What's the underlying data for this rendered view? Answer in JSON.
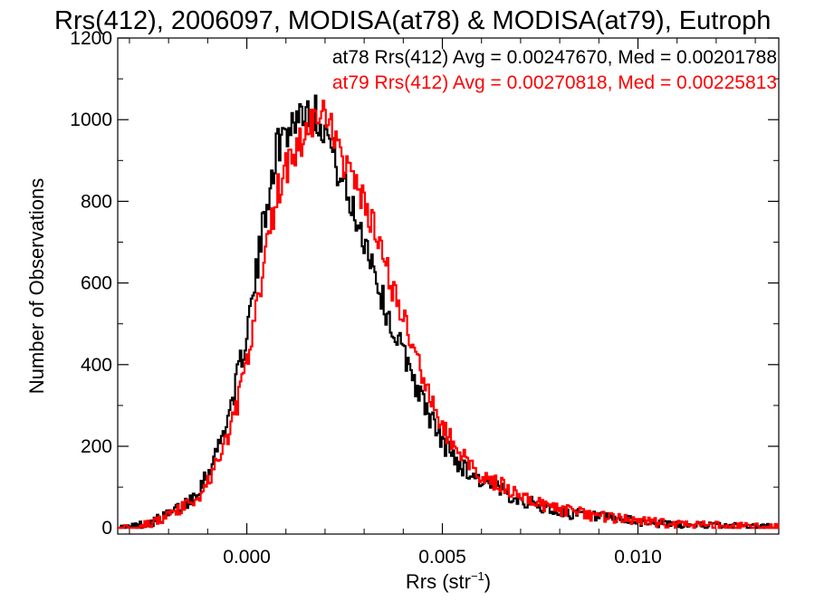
{
  "chart_data": {
    "type": "histogram-step",
    "title": "Rrs(412), 2006097, MODISA(at78) & MODISA(at79), Eutroph",
    "xlabel": "Rrs (str",
    "xlabel_sup": "−1",
    "xlabel_close": ")",
    "ylabel": "Number of Observations",
    "xlim": [
      -0.0033,
      0.0136
    ],
    "ylim": [
      -15,
      1200
    ],
    "x_ticks": [
      0.0,
      0.005,
      0.01
    ],
    "x_tick_labels": [
      "0.000",
      "0.005",
      "0.010"
    ],
    "y_ticks": [
      0,
      200,
      400,
      600,
      800,
      1000,
      1200
    ],
    "y_tick_labels": [
      "0",
      "200",
      "400",
      "600",
      "800",
      "1000",
      "1200"
    ],
    "grid": false,
    "series": [
      {
        "name": "at78",
        "color": "#000000",
        "legend": "at78 Rrs(412) Avg = 0.00247670, Med = 0.00201788",
        "avg": 0.0024767,
        "median": 0.00201788,
        "points": [
          [
            -0.0033,
            0
          ],
          [
            -0.003,
            2
          ],
          [
            -0.0025,
            12
          ],
          [
            -0.002,
            32
          ],
          [
            -0.0015,
            65
          ],
          [
            -0.0013,
            85
          ],
          [
            -0.001,
            135
          ],
          [
            -0.0008,
            180
          ],
          [
            -0.0006,
            235
          ],
          [
            -0.0004,
            300
          ],
          [
            -0.0002,
            385
          ],
          [
            0.0,
            480
          ],
          [
            0.0002,
            590
          ],
          [
            0.0004,
            730
          ],
          [
            0.0006,
            850
          ],
          [
            0.0008,
            940
          ],
          [
            0.001,
            970
          ],
          [
            0.0012,
            1000
          ],
          [
            0.0014,
            1020
          ],
          [
            0.0016,
            1030
          ],
          [
            0.0018,
            1010
          ],
          [
            0.002,
            980
          ],
          [
            0.0022,
            920
          ],
          [
            0.0024,
            860
          ],
          [
            0.0026,
            800
          ],
          [
            0.0028,
            760
          ],
          [
            0.003,
            710
          ],
          [
            0.0032,
            660
          ],
          [
            0.0034,
            580
          ],
          [
            0.0036,
            520
          ],
          [
            0.0038,
            470
          ],
          [
            0.004,
            430
          ],
          [
            0.0042,
            390
          ],
          [
            0.0044,
            330
          ],
          [
            0.0046,
            290
          ],
          [
            0.0048,
            250
          ],
          [
            0.005,
            210
          ],
          [
            0.0055,
            150
          ],
          [
            0.006,
            115
          ],
          [
            0.0065,
            92
          ],
          [
            0.007,
            70
          ],
          [
            0.0075,
            52
          ],
          [
            0.008,
            40
          ],
          [
            0.009,
            26
          ],
          [
            0.01,
            15
          ],
          [
            0.011,
            8
          ],
          [
            0.012,
            5
          ],
          [
            0.013,
            3
          ],
          [
            0.0136,
            2
          ]
        ]
      },
      {
        "name": "at79",
        "color": "#ff0000",
        "legend": "at79 Rrs(412) Avg = 0.00270818, Med = 0.00225813",
        "avg": 0.00270818,
        "median": 0.00225813,
        "points": [
          [
            -0.0033,
            0
          ],
          [
            -0.003,
            2
          ],
          [
            -0.0025,
            10
          ],
          [
            -0.002,
            28
          ],
          [
            -0.0015,
            58
          ],
          [
            -0.0013,
            70
          ],
          [
            -0.001,
            110
          ],
          [
            -0.0008,
            150
          ],
          [
            -0.0006,
            195
          ],
          [
            -0.0004,
            250
          ],
          [
            -0.0002,
            320
          ],
          [
            0.0,
            400
          ],
          [
            0.0002,
            500
          ],
          [
            0.0004,
            620
          ],
          [
            0.0006,
            740
          ],
          [
            0.0008,
            830
          ],
          [
            0.001,
            880
          ],
          [
            0.0012,
            920
          ],
          [
            0.0014,
            950
          ],
          [
            0.0016,
            980
          ],
          [
            0.0018,
            1010
          ],
          [
            0.002,
            1000
          ],
          [
            0.0022,
            960
          ],
          [
            0.0024,
            920
          ],
          [
            0.0026,
            880
          ],
          [
            0.0028,
            830
          ],
          [
            0.003,
            790
          ],
          [
            0.0032,
            740
          ],
          [
            0.0034,
            690
          ],
          [
            0.0036,
            630
          ],
          [
            0.0038,
            560
          ],
          [
            0.004,
            510
          ],
          [
            0.0042,
            460
          ],
          [
            0.0044,
            400
          ],
          [
            0.0046,
            340
          ],
          [
            0.0048,
            290
          ],
          [
            0.005,
            250
          ],
          [
            0.0055,
            175
          ],
          [
            0.006,
            130
          ],
          [
            0.0065,
            105
          ],
          [
            0.007,
            80
          ],
          [
            0.0075,
            60
          ],
          [
            0.008,
            45
          ],
          [
            0.009,
            28
          ],
          [
            0.01,
            17
          ],
          [
            0.011,
            9
          ],
          [
            0.012,
            6
          ],
          [
            0.013,
            3
          ],
          [
            0.0136,
            2
          ]
        ]
      }
    ]
  }
}
